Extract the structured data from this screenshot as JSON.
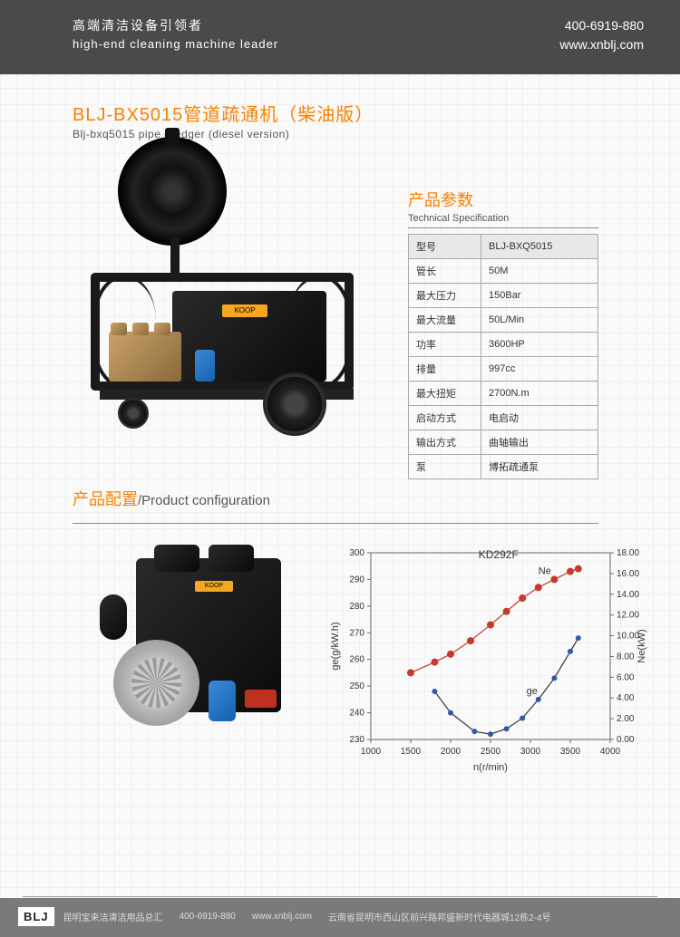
{
  "header": {
    "cn": "高端清洁设备引领者",
    "en": "high-end  cleaning machine leader",
    "phone": "400-6919-880",
    "url": "www.xnblj.com"
  },
  "title": {
    "cn": "BLJ-BX5015管道疏通机（柴油版）",
    "en": "Blj-bxq5015 pipe dredger (diesel version)"
  },
  "spec": {
    "title_cn": "产品参数",
    "title_en": "Technical  Specification",
    "rows": [
      {
        "k": "型号",
        "v": "BLJ-BXQ5015"
      },
      {
        "k": "管长",
        "v": "50M"
      },
      {
        "k": "最大压力",
        "v": "150Bar"
      },
      {
        "k": "最大流量",
        "v": "50L/Min"
      },
      {
        "k": "功率",
        "v": "3600HP"
      },
      {
        "k": "排量",
        "v": "997cc"
      },
      {
        "k": "最大扭矩",
        "v": "2700N.m"
      },
      {
        "k": "启动方式",
        "v": "电启动"
      },
      {
        "k": "输出方式",
        "v": "曲轴输出"
      },
      {
        "k": "泵",
        "v": "博拓疏通泵"
      }
    ]
  },
  "config": {
    "cn": "产品配置",
    "sep": "/",
    "en": "Product configuration"
  },
  "chart": {
    "model": "KD292F",
    "xlabel": "n(r/min)",
    "ylabel_left": "ge(g/kW.h)",
    "ylabel_right": "Ne(kW)",
    "label_ne": "Ne",
    "label_ge": "ge",
    "xlim": [
      1000,
      4000
    ],
    "xticks": [
      1000,
      1500,
      2000,
      2500,
      3000,
      3500,
      4000
    ],
    "ylim_left": [
      230,
      300
    ],
    "yticks_left": [
      230,
      240,
      250,
      260,
      270,
      280,
      290,
      300
    ],
    "ylim_right": [
      0,
      18
    ],
    "yticks_right": [
      0.0,
      2.0,
      4.0,
      6.0,
      8.0,
      10.0,
      12.0,
      14.0,
      16.0,
      18.0
    ],
    "series_ne": {
      "x": [
        1500,
        1800,
        2000,
        2250,
        2500,
        2700,
        2900,
        3100,
        3300,
        3500,
        3600
      ],
      "y": [
        255,
        259,
        262,
        267,
        273,
        278,
        283,
        287,
        290,
        293,
        294
      ],
      "color": "#c43a2e",
      "marker": "circle",
      "marker_size": 4,
      "line_width": 1.2
    },
    "series_ge": {
      "x": [
        1800,
        2000,
        2300,
        2500,
        2700,
        2900,
        3100,
        3300,
        3500,
        3600
      ],
      "y": [
        248,
        240,
        233,
        232,
        234,
        238,
        245,
        253,
        263,
        268
      ],
      "color": "#2e5aa8",
      "marker": "circle",
      "marker_size": 3,
      "line_width": 1.2,
      "line_color": "#333333"
    },
    "axis_color": "#666666",
    "text_color": "#333333",
    "background": "transparent",
    "tick_fontsize": 10,
    "label_fontsize": 11
  },
  "footer": {
    "logo": "BLJ",
    "company": "昆明宝来洁清洁用品总汇",
    "phone": "400-6919-880",
    "url": "www.xnblj.com",
    "address": "云南省昆明市西山区前兴路邦盛新时代电器城12栋2-4号"
  }
}
